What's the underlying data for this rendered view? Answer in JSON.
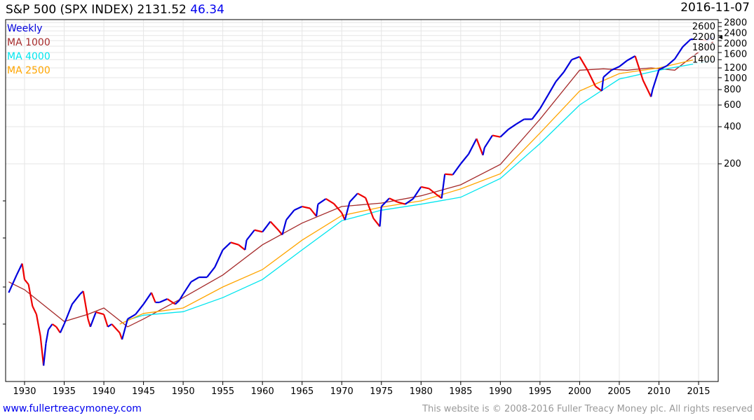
{
  "header": {
    "title": "S&P 500 (SPX INDEX) 2131.52",
    "change": "46.34",
    "date": "2016-11-07"
  },
  "legend": [
    {
      "label": "Weekly",
      "color": "#0000dd"
    },
    {
      "label": "MA 1000",
      "color": "#a52a2a"
    },
    {
      "label": "MA 4000",
      "color": "#00e5ee"
    },
    {
      "label": "MA 2500",
      "color": "#ffa500"
    }
  ],
  "footer": {
    "link": "www.fullertreacymoney.com",
    "copyright": "This website is © 2008-2016 Fuller Treacy Money plc. All rights reserved"
  },
  "chart_data": {
    "type": "line",
    "title": "S&P 500 (SPX INDEX)",
    "yscale": "log",
    "ylim": [
      4,
      2900
    ],
    "xlim": [
      1928,
      2017
    ],
    "x_ticks": [
      "1930",
      "1935",
      "1940",
      "1945",
      "1950",
      "1955",
      "1960",
      "1965",
      "1970",
      "1975",
      "1980",
      "1985",
      "1990",
      "1995",
      "2000",
      "2005",
      "2010",
      "2015"
    ],
    "y_ticks": [
      200,
      400,
      600,
      800,
      1000,
      1200,
      1400,
      1600,
      1800,
      2000,
      2200,
      2400,
      2600,
      2800
    ],
    "last_value_marker": 2132,
    "series": [
      {
        "name": "Weekly",
        "color": "#0000dd",
        "down_color": "#ee0000",
        "x": [
          1928,
          1929,
          1929.7,
          1930,
          1930.5,
          1931,
          1931.5,
          1932,
          1932.4,
          1932.7,
          1933,
          1933.5,
          1934,
          1934.5,
          1935,
          1936,
          1937,
          1937.4,
          1938,
          1938.3,
          1939,
          1940,
          1940.5,
          1941,
          1942,
          1942.3,
          1943,
          1944,
          1945,
          1946,
          1946.5,
          1947,
          1948,
          1949,
          1949.5,
          1950,
          1951,
          1952,
          1953,
          1954,
          1955,
          1956,
          1957,
          1957.8,
          1958,
          1959,
          1960,
          1961,
          1962,
          1962.5,
          1963,
          1964,
          1965,
          1966,
          1966.8,
          1967,
          1968,
          1969,
          1970,
          1970.4,
          1971,
          1972,
          1973,
          1974,
          1974.8,
          1975,
          1976,
          1977,
          1978,
          1979,
          1980,
          1981,
          1982,
          1982.6,
          1983,
          1984,
          1985,
          1986,
          1987,
          1987.8,
          1988,
          1989,
          1990,
          1991,
          1992,
          1993,
          1994,
          1995,
          1996,
          1997,
          1998,
          1999,
          2000,
          2001,
          2002,
          2002.8,
          2003,
          2004,
          2005,
          2006,
          2007,
          2008,
          2009,
          2009.2,
          2010,
          2011,
          2012,
          2013,
          2014,
          2015,
          2016,
          2016.85
        ],
        "y": [
          18,
          25,
          31,
          23,
          21,
          14,
          12,
          8,
          4.6,
          7,
          9,
          10,
          9.5,
          8.5,
          10,
          14.5,
          17.5,
          18.5,
          11,
          9.5,
          12.5,
          12,
          9.5,
          10,
          8.5,
          7.5,
          11,
          12,
          14.5,
          18,
          15,
          15,
          16,
          14.5,
          15.5,
          17.5,
          22,
          24,
          24,
          29,
          40,
          46,
          44,
          40,
          48,
          58,
          56,
          68,
          58,
          53,
          70,
          84,
          90,
          87,
          75,
          94,
          104,
          95,
          80,
          70,
          98,
          115,
          106,
          72,
          62,
          90,
          105,
          98,
          94,
          104,
          130,
          126,
          112,
          105,
          165,
          163,
          200,
          240,
          320,
          235,
          270,
          340,
          330,
          380,
          420,
          460,
          460,
          560,
          720,
          930,
          1110,
          1400,
          1480,
          1150,
          850,
          780,
          1010,
          1150,
          1230,
          1380,
          1500,
          950,
          700,
          800,
          1160,
          1250,
          1420,
          1780,
          2050,
          2050,
          2000,
          2132
        ]
      },
      {
        "name": "MA 1000",
        "color": "#a52a2a",
        "x": [
          1928,
          1930,
          1932,
          1935,
          1938,
          1940,
          1943,
          1945,
          1950,
          1955,
          1960,
          1965,
          1970,
          1975,
          1980,
          1985,
          1990,
          1995,
          2000,
          2003,
          2006,
          2009,
          2012,
          2014,
          2016.85
        ],
        "y": [
          22,
          19,
          15,
          10.5,
          12,
          13.5,
          9.5,
          11,
          16.4,
          25,
          44,
          66,
          90,
          96,
          110,
          135,
          198,
          460,
          1150,
          1180,
          1150,
          1200,
          1150,
          1450,
          1960
        ]
      },
      {
        "name": "MA 4000",
        "color": "#00e5ee",
        "x": [
          1943,
          1945,
          1950,
          1955,
          1960,
          1965,
          1970,
          1975,
          1980,
          1985,
          1990,
          1995,
          2000,
          2005,
          2010,
          2016.85
        ],
        "y": [
          10.8,
          11.8,
          12.6,
          16.4,
          23,
          40,
          69,
          84,
          94,
          107,
          152,
          292,
          600,
          975,
          1150,
          1380
        ]
      },
      {
        "name": "MA 2500",
        "color": "#ffa500",
        "x": [
          1942,
          1945,
          1950,
          1955,
          1960,
          1965,
          1970,
          1975,
          1980,
          1985,
          1990,
          1995,
          2000,
          2005,
          2010,
          2016.85
        ],
        "y": [
          10,
          12.2,
          13.5,
          20,
          27.7,
          48,
          76,
          89,
          100,
          125,
          166,
          355,
          780,
          1080,
          1200,
          1520
        ]
      }
    ]
  }
}
